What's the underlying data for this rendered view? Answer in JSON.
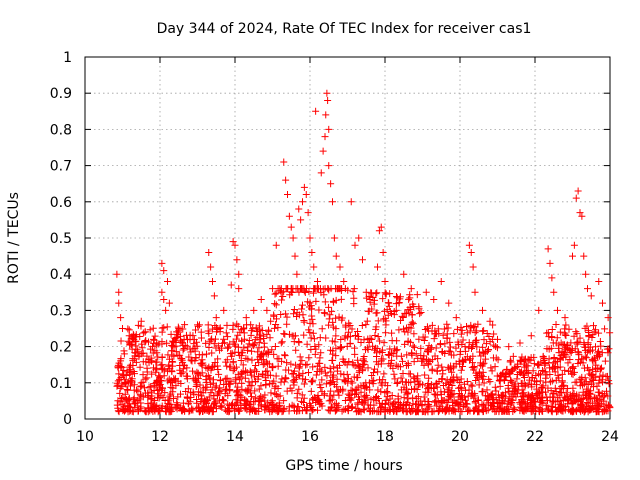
{
  "chart_data": {
    "type": "scatter",
    "title": "Day 344 of 2024, Rate Of TEC Index for receiver cas1",
    "xlabel": "GPS time / hours",
    "ylabel": "ROTI / TECUs",
    "xlim": [
      10,
      24
    ],
    "ylim": [
      0,
      1
    ],
    "x_ticks": [
      "10",
      "12",
      "14",
      "16",
      "18",
      "20",
      "22",
      "24"
    ],
    "y_ticks": [
      "0",
      "0.1",
      "0.2",
      "0.3",
      "0.4",
      "0.5",
      "0.6",
      "0.7",
      "0.8",
      "0.9",
      "1"
    ],
    "grid": true,
    "legend": "none",
    "marker": "+",
    "color": "#ff0000",
    "series": [
      {
        "points": [
          [
            10.85,
            0.4
          ],
          [
            10.9,
            0.35
          ],
          [
            10.9,
            0.32
          ],
          [
            10.95,
            0.28
          ],
          [
            11.0,
            0.25
          ],
          [
            11.05,
            0.18
          ],
          [
            11.1,
            0.12
          ],
          [
            11.3,
            0.22
          ],
          [
            11.5,
            0.27
          ],
          [
            11.6,
            0.24
          ],
          [
            11.8,
            0.2
          ],
          [
            12.05,
            0.43
          ],
          [
            12.1,
            0.41
          ],
          [
            12.05,
            0.35
          ],
          [
            12.1,
            0.33
          ],
          [
            12.15,
            0.3
          ],
          [
            12.2,
            0.38
          ],
          [
            12.25,
            0.32
          ],
          [
            12.5,
            0.25
          ],
          [
            12.8,
            0.22
          ],
          [
            13.0,
            0.26
          ],
          [
            13.1,
            0.24
          ],
          [
            13.3,
            0.46
          ],
          [
            13.35,
            0.42
          ],
          [
            13.4,
            0.38
          ],
          [
            13.45,
            0.34
          ],
          [
            13.5,
            0.28
          ],
          [
            13.7,
            0.3
          ],
          [
            13.9,
            0.37
          ],
          [
            13.95,
            0.49
          ],
          [
            14.0,
            0.48
          ],
          [
            14.05,
            0.44
          ],
          [
            14.1,
            0.4
          ],
          [
            14.1,
            0.36
          ],
          [
            14.3,
            0.28
          ],
          [
            14.5,
            0.3
          ],
          [
            14.7,
            0.33
          ],
          [
            14.85,
            0.3
          ],
          [
            14.95,
            0.27
          ],
          [
            15.1,
            0.48
          ],
          [
            15.3,
            0.71
          ],
          [
            15.35,
            0.66
          ],
          [
            15.4,
            0.62
          ],
          [
            15.45,
            0.56
          ],
          [
            15.5,
            0.53
          ],
          [
            15.55,
            0.5
          ],
          [
            15.6,
            0.45
          ],
          [
            15.65,
            0.4
          ],
          [
            15.7,
            0.58
          ],
          [
            15.75,
            0.55
          ],
          [
            15.8,
            0.6
          ],
          [
            15.85,
            0.64
          ],
          [
            15.9,
            0.62
          ],
          [
            15.95,
            0.57
          ],
          [
            16.0,
            0.5
          ],
          [
            16.05,
            0.46
          ],
          [
            16.1,
            0.42
          ],
          [
            16.15,
            0.85
          ],
          [
            16.2,
            0.38
          ],
          [
            16.3,
            0.68
          ],
          [
            16.35,
            0.74
          ],
          [
            16.4,
            0.78
          ],
          [
            16.42,
            0.84
          ],
          [
            16.45,
            0.9
          ],
          [
            16.47,
            0.88
          ],
          [
            16.5,
            0.8
          ],
          [
            16.5,
            0.7
          ],
          [
            16.55,
            0.65
          ],
          [
            16.6,
            0.6
          ],
          [
            16.65,
            0.5
          ],
          [
            16.7,
            0.45
          ],
          [
            16.8,
            0.42
          ],
          [
            16.9,
            0.38
          ],
          [
            17.1,
            0.6
          ],
          [
            17.2,
            0.48
          ],
          [
            17.3,
            0.5
          ],
          [
            17.4,
            0.44
          ],
          [
            17.5,
            0.35
          ],
          [
            17.6,
            0.33
          ],
          [
            17.8,
            0.42
          ],
          [
            17.85,
            0.52
          ],
          [
            17.9,
            0.53
          ],
          [
            17.95,
            0.46
          ],
          [
            18.0,
            0.38
          ],
          [
            18.1,
            0.32
          ],
          [
            18.3,
            0.3
          ],
          [
            18.5,
            0.4
          ],
          [
            18.7,
            0.36
          ],
          [
            18.9,
            0.31
          ],
          [
            19.1,
            0.35
          ],
          [
            19.3,
            0.33
          ],
          [
            19.5,
            0.38
          ],
          [
            19.7,
            0.32
          ],
          [
            19.9,
            0.28
          ],
          [
            20.25,
            0.48
          ],
          [
            20.3,
            0.46
          ],
          [
            20.35,
            0.42
          ],
          [
            20.4,
            0.35
          ],
          [
            20.6,
            0.3
          ],
          [
            20.8,
            0.27
          ],
          [
            21.0,
            0.22
          ],
          [
            21.3,
            0.2
          ],
          [
            21.6,
            0.21
          ],
          [
            21.9,
            0.23
          ],
          [
            22.1,
            0.3
          ],
          [
            22.35,
            0.47
          ],
          [
            22.4,
            0.43
          ],
          [
            22.45,
            0.39
          ],
          [
            22.5,
            0.35
          ],
          [
            22.6,
            0.3
          ],
          [
            22.8,
            0.28
          ],
          [
            23.0,
            0.45
          ],
          [
            23.05,
            0.48
          ],
          [
            23.1,
            0.61
          ],
          [
            23.15,
            0.63
          ],
          [
            23.2,
            0.57
          ],
          [
            23.25,
            0.56
          ],
          [
            23.3,
            0.45
          ],
          [
            23.35,
            0.4
          ],
          [
            23.4,
            0.36
          ],
          [
            23.5,
            0.34
          ],
          [
            23.7,
            0.38
          ],
          [
            23.8,
            0.32
          ],
          [
            23.95,
            0.28
          ]
        ]
      }
    ]
  }
}
